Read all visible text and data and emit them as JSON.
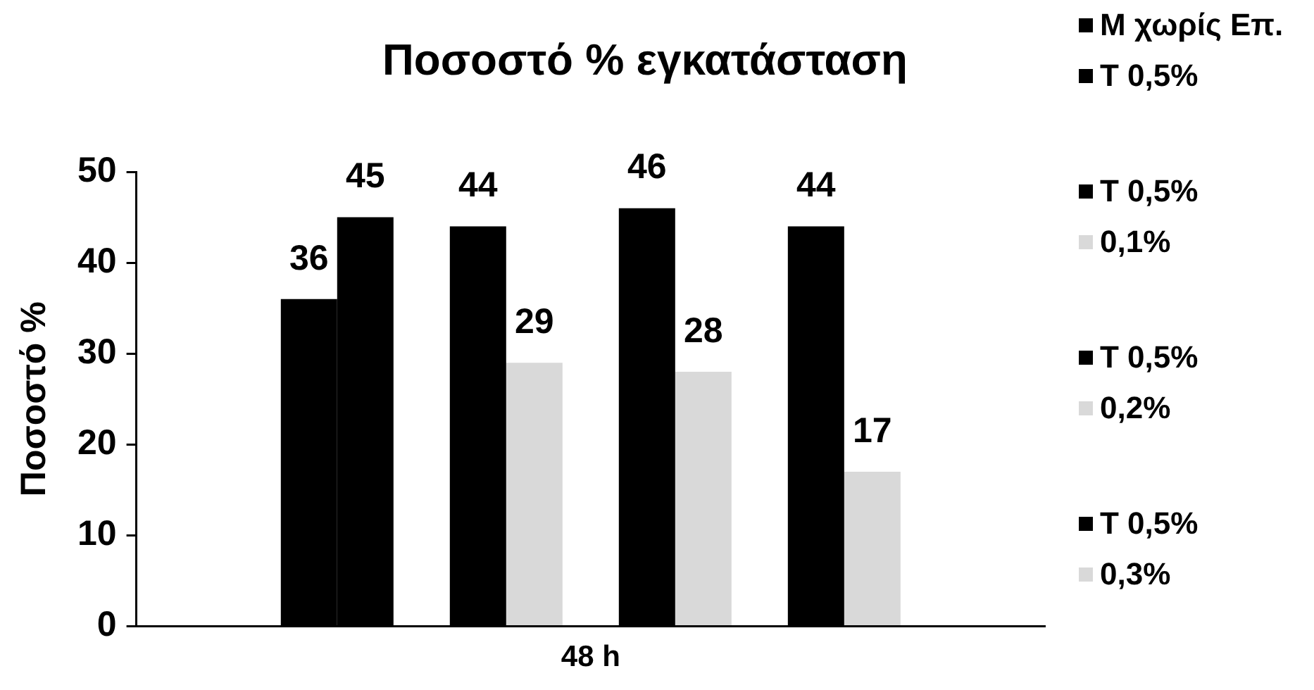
{
  "chart_data": {
    "type": "bar",
    "title": "Ποσοστό % εγκατάσταση",
    "ylabel": "Ποσοστό %",
    "categories": [
      "48 h"
    ],
    "series": [
      {
        "name": "Μ χωρίς Επ.",
        "color": "#000000",
        "values": [
          36
        ]
      },
      {
        "name": "Τ 0,5%",
        "color": "#000000",
        "values": [
          45
        ]
      },
      {
        "values": [
          null
        ]
      },
      {
        "name": "Τ 0,5%",
        "color": "#000000",
        "values": [
          44
        ]
      },
      {
        "name": "0,1%",
        "color": "#d9d9d9",
        "values": [
          29
        ]
      },
      {
        "values": [
          null
        ]
      },
      {
        "name": "Τ 0,5%",
        "color": "#000000",
        "values": [
          46
        ]
      },
      {
        "name": "0,2%",
        "color": "#d9d9d9",
        "values": [
          28
        ]
      },
      {
        "values": [
          null
        ]
      },
      {
        "name": "Τ 0,5%",
        "color": "#000000",
        "values": [
          44
        ]
      },
      {
        "name": "0,3%",
        "color": "#d9d9d9",
        "values": [
          17
        ]
      }
    ],
    "ylim": [
      0,
      50
    ],
    "yticks": [
      0,
      10,
      20,
      30,
      40,
      50
    ],
    "grid": false,
    "legend": "right",
    "data_labels": true
  }
}
